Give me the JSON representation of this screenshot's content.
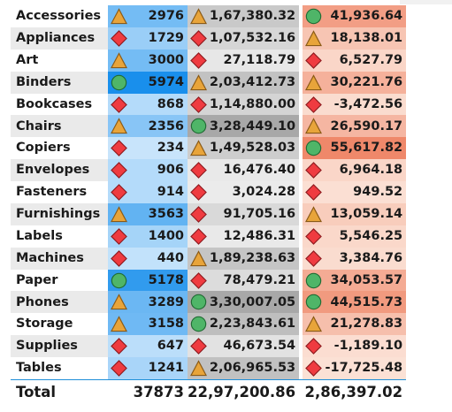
{
  "colors": {
    "up_triangle": "#e8a43a",
    "down_diamond": "#ef3b40",
    "neutral_circle": "#4fb568"
  },
  "rows": [
    {
      "category": "Accessories",
      "qty": "2976",
      "qty_icon": "triangle",
      "sales": "1,67,380.32",
      "sales_icon": "triangle",
      "profit": "41,936.64",
      "profit_icon": "circle",
      "qty_level": 0.5,
      "sales_level": 0.51,
      "profit_level": 0.75
    },
    {
      "category": "Appliances",
      "qty": "1729",
      "qty_icon": "diamond",
      "sales": "1,07,532.16",
      "sales_icon": "diamond",
      "profit": "18,138.01",
      "profit_icon": "triangle",
      "qty_level": 0.29,
      "sales_level": 0.33,
      "profit_level": 0.32
    },
    {
      "category": "Art",
      "qty": "3000",
      "qty_icon": "triangle",
      "sales": "27,118.79",
      "sales_icon": "diamond",
      "profit": "6,527.79",
      "profit_icon": "diamond",
      "qty_level": 0.5,
      "sales_level": 0.08,
      "profit_level": 0.12
    },
    {
      "category": "Binders",
      "qty": "5974",
      "qty_icon": "circle",
      "sales": "2,03,412.73",
      "sales_icon": "triangle",
      "profit": "30,221.76",
      "profit_icon": "triangle",
      "qty_level": 1.0,
      "sales_level": 0.62,
      "profit_level": 0.54
    },
    {
      "category": "Bookcases",
      "qty": "868",
      "qty_icon": "diamond",
      "sales": "1,14,880.00",
      "sales_icon": "diamond",
      "profit": "-3,472.56",
      "profit_icon": "diamond",
      "qty_level": 0.15,
      "sales_level": 0.35,
      "profit_level": 0.06
    },
    {
      "category": "Chairs",
      "qty": "2356",
      "qty_icon": "triangle",
      "sales": "3,28,449.10",
      "sales_icon": "circle",
      "profit": "26,590.17",
      "profit_icon": "triangle",
      "qty_level": 0.39,
      "sales_level": 1.0,
      "profit_level": 0.48
    },
    {
      "category": "Copiers",
      "qty": "234",
      "qty_icon": "diamond",
      "sales": "1,49,528.03",
      "sales_icon": "triangle",
      "profit": "55,617.82",
      "profit_icon": "circle",
      "qty_level": 0.04,
      "sales_level": 0.46,
      "profit_level": 1.0
    },
    {
      "category": "Envelopes",
      "qty": "906",
      "qty_icon": "diamond",
      "sales": "16,476.40",
      "sales_icon": "diamond",
      "profit": "6,964.18",
      "profit_icon": "diamond",
      "qty_level": 0.15,
      "sales_level": 0.05,
      "profit_level": 0.12
    },
    {
      "category": "Fasteners",
      "qty": "914",
      "qty_icon": "diamond",
      "sales": "3,024.28",
      "sales_icon": "diamond",
      "profit": "949.52",
      "profit_icon": "diamond",
      "qty_level": 0.15,
      "sales_level": 0.01,
      "profit_level": 0.02
    },
    {
      "category": "Furnishings",
      "qty": "3563",
      "qty_icon": "triangle",
      "sales": "91,705.16",
      "sales_icon": "diamond",
      "profit": "13,059.14",
      "profit_icon": "triangle",
      "qty_level": 0.6,
      "sales_level": 0.28,
      "profit_level": 0.23
    },
    {
      "category": "Labels",
      "qty": "1400",
      "qty_icon": "diamond",
      "sales": "12,486.31",
      "sales_icon": "diamond",
      "profit": "5,546.25",
      "profit_icon": "diamond",
      "qty_level": 0.23,
      "sales_level": 0.04,
      "profit_level": 0.1
    },
    {
      "category": "Machines",
      "qty": "440",
      "qty_icon": "diamond",
      "sales": "1,89,238.63",
      "sales_icon": "triangle",
      "profit": "3,384.76",
      "profit_icon": "diamond",
      "qty_level": 0.07,
      "sales_level": 0.58,
      "profit_level": 0.06
    },
    {
      "category": "Paper",
      "qty": "5178",
      "qty_icon": "circle",
      "sales": "78,479.21",
      "sales_icon": "diamond",
      "profit": "34,053.57",
      "profit_icon": "circle",
      "qty_level": 0.87,
      "sales_level": 0.24,
      "profit_level": 0.61
    },
    {
      "category": "Phones",
      "qty": "3289",
      "qty_icon": "triangle",
      "sales": "3,30,007.05",
      "sales_icon": "circle",
      "profit": "44,515.73",
      "profit_icon": "circle",
      "qty_level": 0.55,
      "sales_level": 1.0,
      "profit_level": 0.8
    },
    {
      "category": "Storage",
      "qty": "3158",
      "qty_icon": "triangle",
      "sales": "2,23,843.61",
      "sales_icon": "circle",
      "profit": "21,278.83",
      "profit_icon": "triangle",
      "qty_level": 0.53,
      "sales_level": 0.68,
      "profit_level": 0.38
    },
    {
      "category": "Supplies",
      "qty": "647",
      "qty_icon": "diamond",
      "sales": "46,673.54",
      "sales_icon": "diamond",
      "profit": "-1,189.10",
      "profit_icon": "diamond",
      "qty_level": 0.11,
      "sales_level": 0.14,
      "profit_level": 0.04
    },
    {
      "category": "Tables",
      "qty": "1241",
      "qty_icon": "diamond",
      "sales": "2,06,965.53",
      "sales_icon": "triangle",
      "profit": "-17,725.48",
      "profit_icon": "diamond",
      "qty_level": 0.21,
      "sales_level": 0.63,
      "profit_level": 0.0
    }
  ],
  "total": {
    "label": "Total",
    "qty": "37873",
    "sales": "22,97,200.86",
    "profit": "2,86,397.02"
  }
}
